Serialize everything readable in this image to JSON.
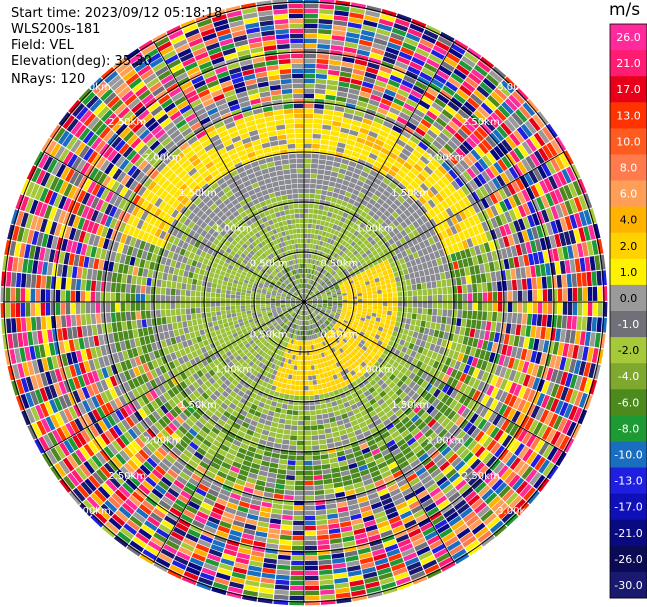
{
  "header": {
    "start_time": "Start time: 2023/09/12 05:18:18",
    "instrument": "WLS200s-181",
    "field": "Field: VEL",
    "elevation": "Elevation(deg): 35.30",
    "nrays": "NRays: 120"
  },
  "chart_data": {
    "type": "heatmap",
    "subtype": "polar-ppi",
    "field": "VEL",
    "rays": 120,
    "range_rings": [
      "0.50km",
      "1.00km",
      "1.50km",
      "2.00km",
      "2.50km",
      "3.00km"
    ],
    "colorbar": {
      "unit": "m/s",
      "ticks": [
        "26.0",
        "21.0",
        "17.0",
        "13.0",
        "10.0",
        "8.0",
        "6.0",
        "4.0",
        "2.0",
        "1.0",
        "0.0",
        "-1.0",
        "-2.0",
        "-4.0",
        "-6.0",
        "-8.0",
        "-10.0",
        "-13.0",
        "-17.0",
        "-21.0",
        "-26.0",
        "-30.0"
      ],
      "colors": [
        "#ff2b9c",
        "#ff1c73",
        "#e8001a",
        "#ff3300",
        "#ff5a1f",
        "#ff7a4d",
        "#ff9e57",
        "#ffb300",
        "#ffd200",
        "#fff200",
        "#9a9a9a",
        "#707078",
        "#a6c93a",
        "#7ea82e",
        "#4c8a1e",
        "#1e9a35",
        "#1a6ec0",
        "#1f1fe0",
        "#1010b8",
        "#0a0a80",
        "#0b0b55",
        "#191970"
      ]
    },
    "near_range_pattern": {
      "gray_ring_km": [
        0.35,
        1.45
      ],
      "yellow_band_km": [
        1.5,
        1.9
      ],
      "yellow_sector_center": "east"
    }
  }
}
